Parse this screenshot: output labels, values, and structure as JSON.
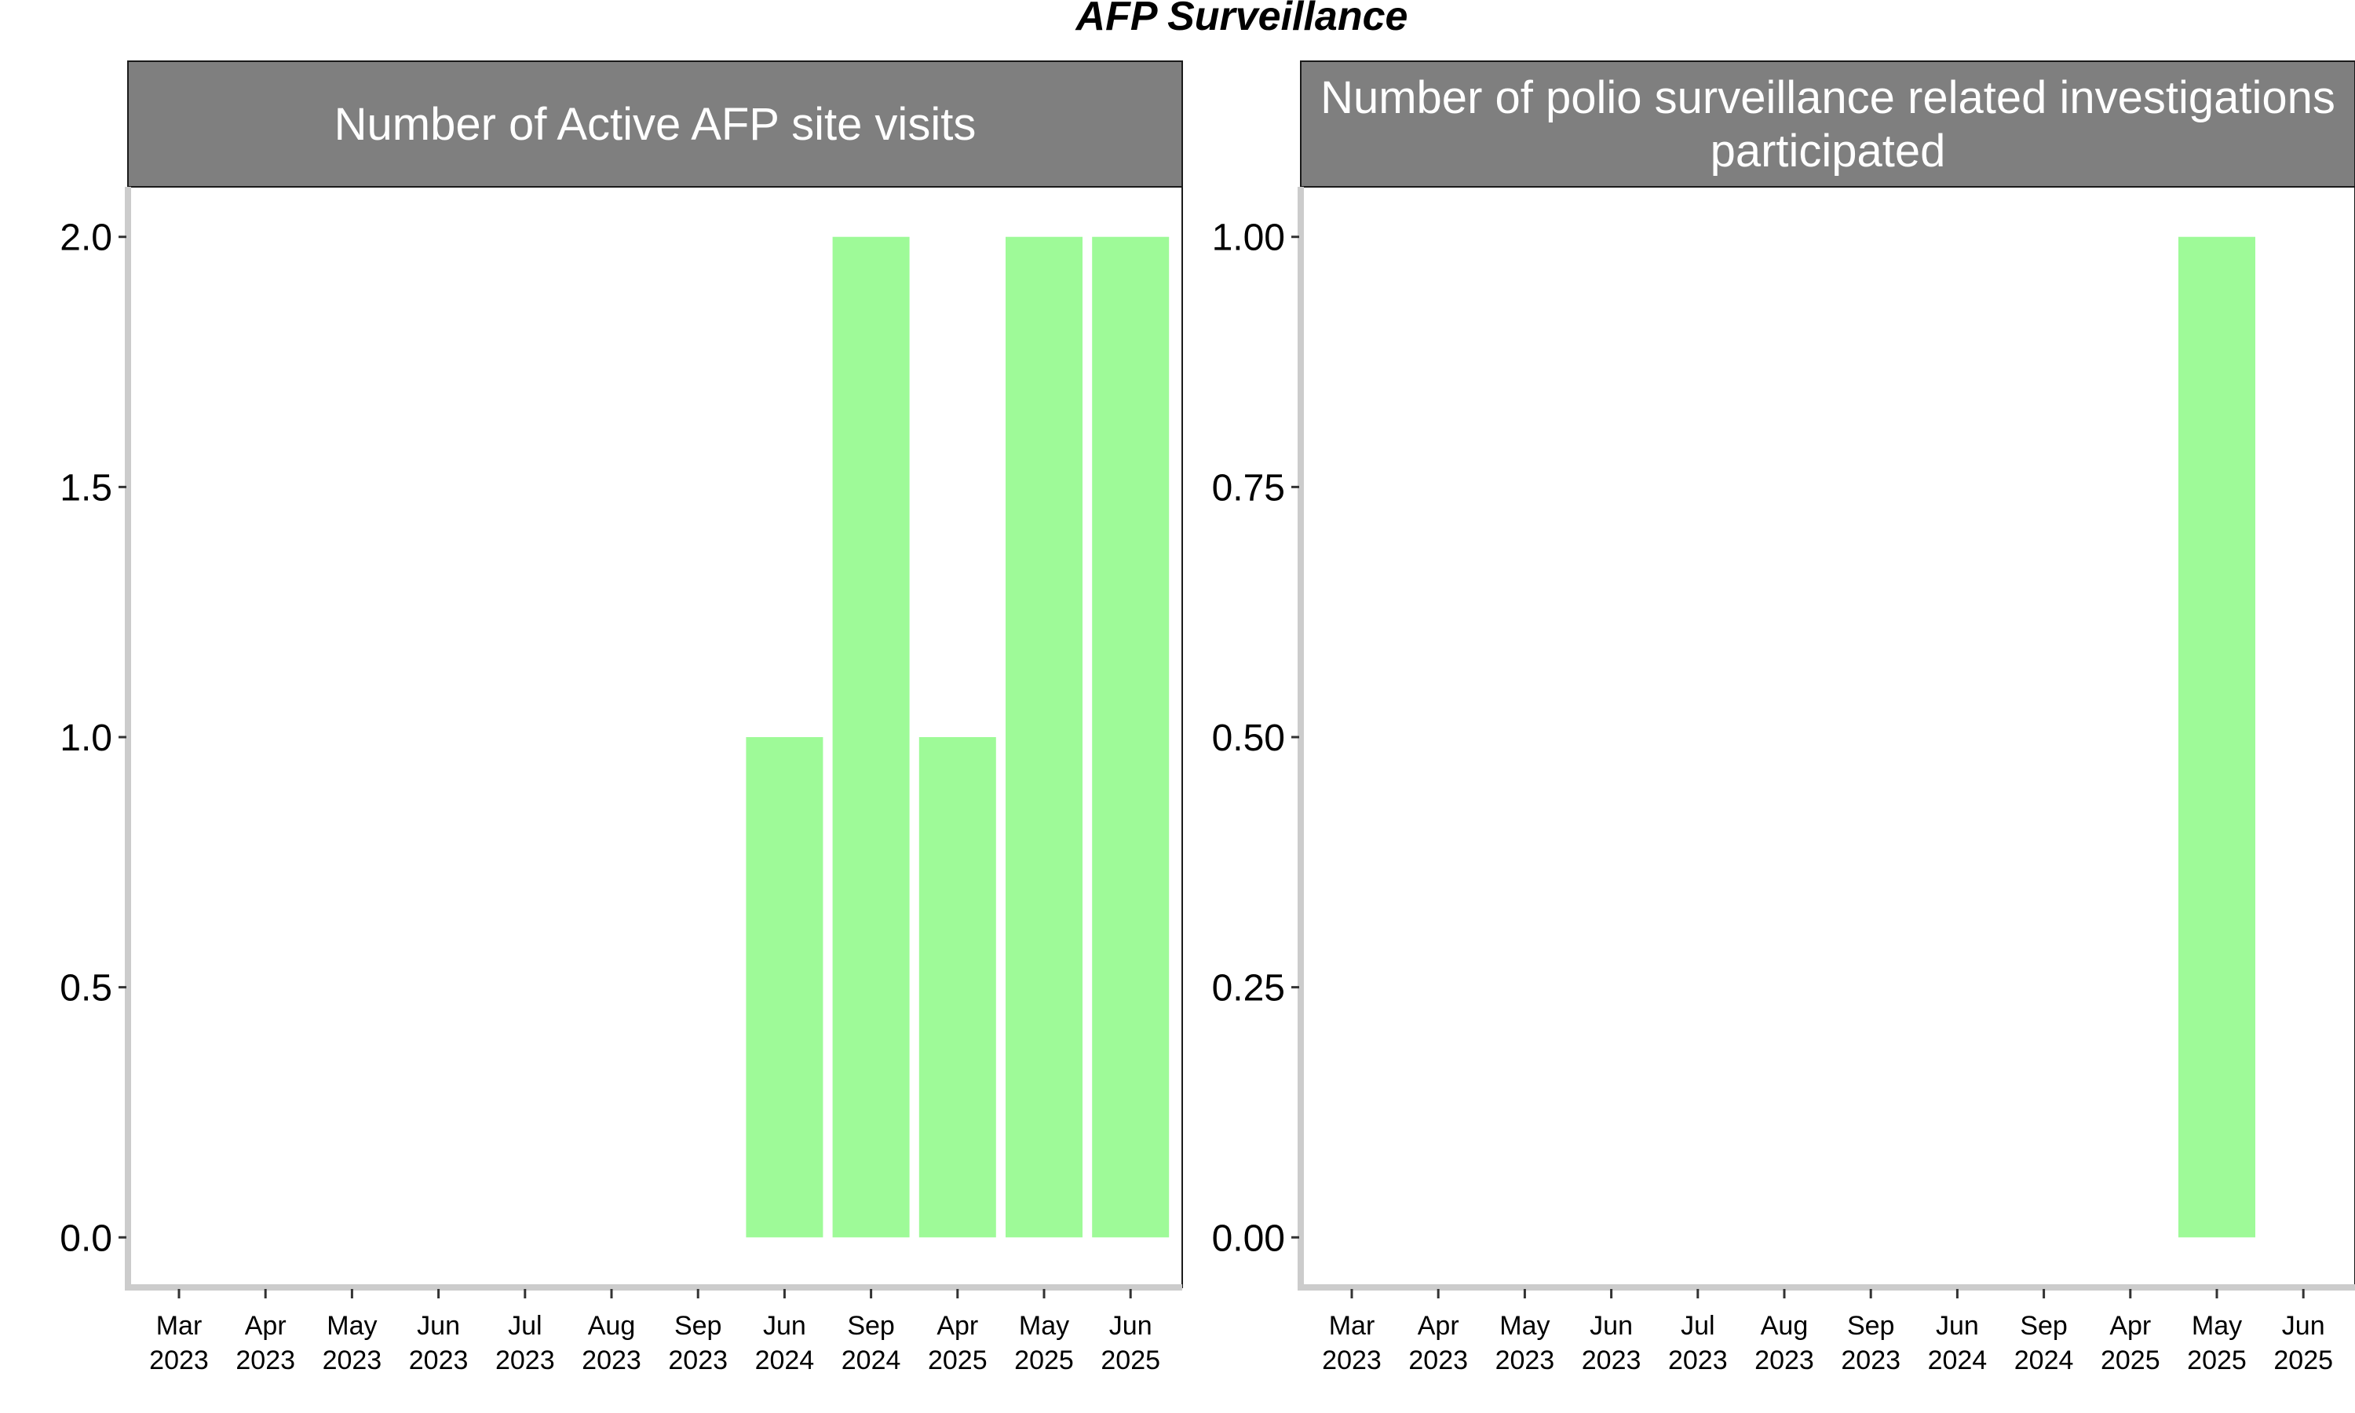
{
  "title": "AFP Surveillance",
  "colors": {
    "bar": "#9efa98",
    "strip": "#7f7f7f",
    "strip_text": "#ffffff",
    "axis": "#cccccc",
    "text": "#000000"
  },
  "chart_data": [
    {
      "type": "bar",
      "panel_title": "Number of Active AFP site visits",
      "categories": [
        [
          "Mar",
          "2023"
        ],
        [
          "Apr",
          "2023"
        ],
        [
          "May",
          "2023"
        ],
        [
          "Jun",
          "2023"
        ],
        [
          "Jul",
          "2023"
        ],
        [
          "Aug",
          "2023"
        ],
        [
          "Sep",
          "2023"
        ],
        [
          "Jun",
          "2024"
        ],
        [
          "Sep",
          "2024"
        ],
        [
          "Apr",
          "2025"
        ],
        [
          "May",
          "2025"
        ],
        [
          "Jun",
          "2025"
        ]
      ],
      "values": [
        null,
        null,
        null,
        null,
        null,
        null,
        null,
        1,
        2,
        1,
        2,
        2
      ],
      "ylim": [
        -0.1,
        2.1
      ],
      "yticks": [
        "0.0",
        "0.5",
        "1.0",
        "1.5",
        "2.0"
      ],
      "ytick_values": [
        0,
        0.5,
        1,
        1.5,
        2
      ]
    },
    {
      "type": "bar",
      "panel_title": [
        "Number of polio surveillance related investigations",
        "participated"
      ],
      "categories": [
        [
          "Mar",
          "2023"
        ],
        [
          "Apr",
          "2023"
        ],
        [
          "May",
          "2023"
        ],
        [
          "Jun",
          "2023"
        ],
        [
          "Jul",
          "2023"
        ],
        [
          "Aug",
          "2023"
        ],
        [
          "Sep",
          "2023"
        ],
        [
          "Jun",
          "2024"
        ],
        [
          "Sep",
          "2024"
        ],
        [
          "Apr",
          "2025"
        ],
        [
          "May",
          "2025"
        ],
        [
          "Jun",
          "2025"
        ]
      ],
      "values": [
        null,
        null,
        null,
        null,
        null,
        null,
        null,
        null,
        null,
        null,
        1,
        null
      ],
      "ylim": [
        -0.05,
        1.05
      ],
      "yticks": [
        "0.00",
        "0.25",
        "0.50",
        "0.75",
        "1.00"
      ],
      "ytick_values": [
        0,
        0.25,
        0.5,
        0.75,
        1
      ]
    }
  ]
}
